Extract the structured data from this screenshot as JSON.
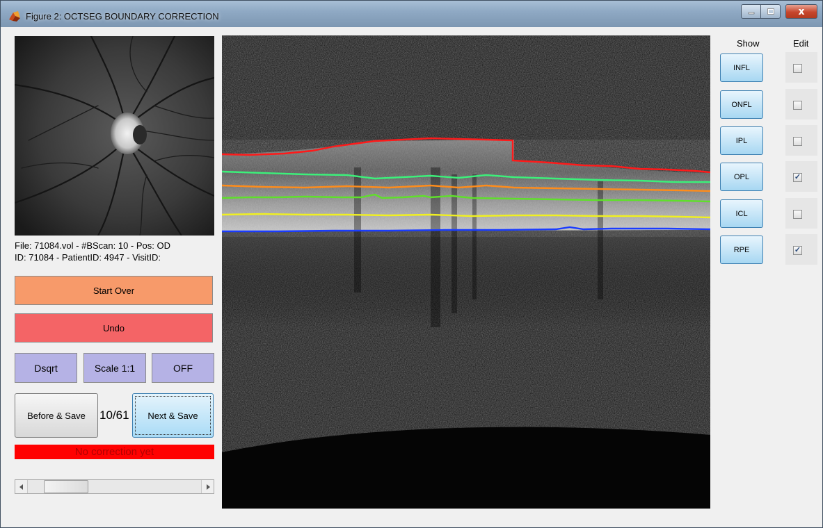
{
  "window": {
    "title": "Figure 2: OCTSEG BOUNDARY CORRECTION",
    "close_glyph": "x"
  },
  "info": {
    "line1": "File: 71084.vol - #BScan: 10 - Pos: OD",
    "line2": "ID: 71084 - PatientID: 4947 - VisitID:"
  },
  "buttons": {
    "start_over": "Start Over",
    "undo": "Undo",
    "dsqrt": "Dsqrt",
    "scale": "Scale 1:1",
    "off": "OFF",
    "before_save": "Before & Save",
    "next_save": "Next & Save"
  },
  "counter": "10/61",
  "status": "No correction yet",
  "scroll_position": 0.13,
  "layers_panel": {
    "show_header": "Show",
    "edit_header": "Edit",
    "layers": [
      {
        "name": "INFL",
        "edit": false,
        "color": "#ff1a1a"
      },
      {
        "name": "ONFL",
        "edit": false,
        "color": "#3cf07a"
      },
      {
        "name": "IPL",
        "edit": false,
        "color": "#ff8c1a"
      },
      {
        "name": "OPL",
        "edit": true,
        "color": "#5fe02a"
      },
      {
        "name": "ICL",
        "edit": false,
        "color": "#f0f020"
      },
      {
        "name": "RPE",
        "edit": true,
        "color": "#1a3cff"
      }
    ]
  },
  "colors": {
    "start_over": "#f79a6a",
    "undo": "#f46466",
    "toggle_buttons": "#b5b2e5",
    "status_bg": "#ff0000"
  }
}
